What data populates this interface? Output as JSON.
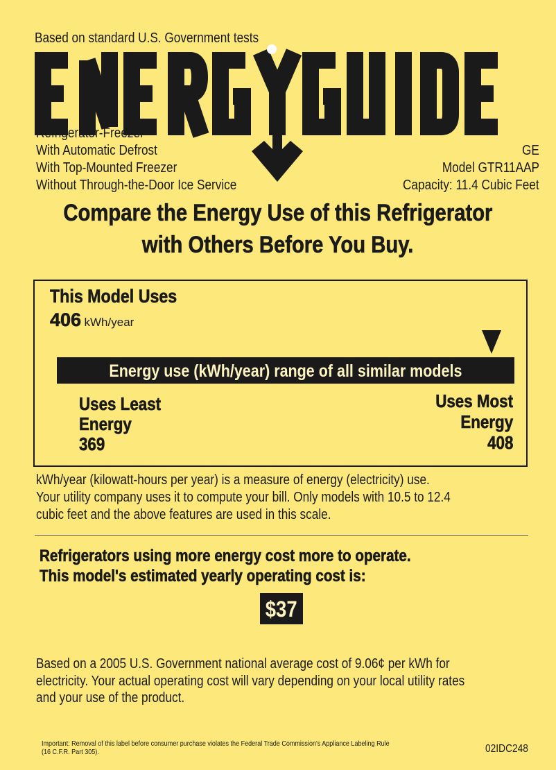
{
  "header": {
    "tests_note": "Based on standard U.S. Government tests",
    "logo_text": "ENERGYGUIDE"
  },
  "features": [
    "Refrigerator-Freezer",
    "With Automatic Defrost",
    "With Top-Mounted Freezer",
    "Without Through-the-Door Ice Service"
  ],
  "model_info": {
    "brand": "GE",
    "model": "Model GTR11AAP",
    "capacity": "Capacity: 11.4 Cubic Feet"
  },
  "headline": {
    "line1": "Compare the Energy Use of this Refrigerator",
    "line2": "with Others Before You Buy."
  },
  "usage_box": {
    "title": "This Model Uses",
    "value": "406",
    "unit": "kWh/year",
    "range_bar": "Energy use (kWh/year) range of all similar models",
    "least_label_1": "Uses Least",
    "least_label_2": "Energy",
    "least_value": "369",
    "most_label_1": "Uses Most",
    "most_label_2": "Energy",
    "most_value": "408",
    "position_fraction": 0.95
  },
  "explanation": [
    "kWh/year (kilowatt-hours per year) is a measure of energy (electricity) use.",
    "Your utility company uses it to compute your bill. Only models with 10.5 to 12.4",
    "cubic feet and the above features are used in this scale."
  ],
  "cost": {
    "line1": "Refrigerators using more energy cost more to operate.",
    "line2": "This model's estimated yearly operating cost is:",
    "value": "$37"
  },
  "cost_note": [
    "Based on a 2005 U.S. Government national average cost of 9.06¢  per kWh for",
    "electricity. Your actual operating cost will vary depending on your local utility rates",
    "and your use of the product."
  ],
  "footer": {
    "line1": "Important: Removal of this label before consumer purchase violates the Federal Trade Commission's Appliance Labeling Rule",
    "line2": " (16 C.F.R. Part 305).",
    "code": "02IDC248"
  },
  "colors": {
    "background": "#fde97b",
    "ink": "#1a1a1a"
  }
}
